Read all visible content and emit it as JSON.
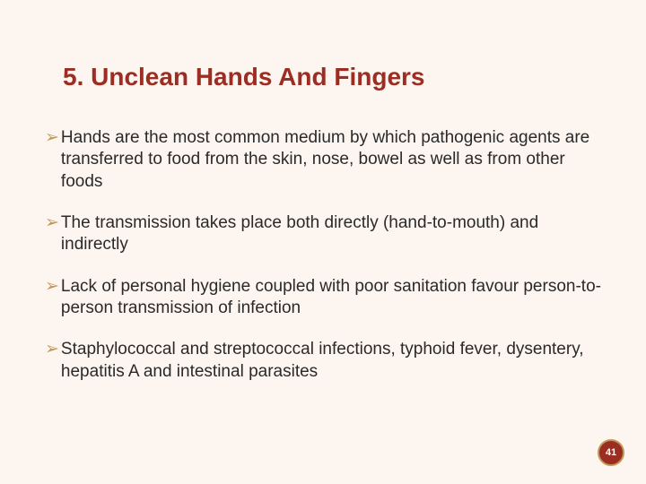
{
  "slide": {
    "background_color": "#fdf5ef",
    "title": {
      "text": "5. Unclean Hands And Fingers",
      "color": "#9b2d23",
      "fontsize": 28,
      "fontweight": "bold"
    },
    "bullet_marker": {
      "glyph": "➢",
      "color": "#c19a5b"
    },
    "bullets": [
      "Hands are the most common medium by which pathogenic agents are transferred to food from the skin, nose, bowel as well as from other foods",
      "The transmission takes place both directly (hand-to-mouth) and indirectly",
      "Lack of personal hygiene coupled with poor sanitation favour person-to-person transmission of infection",
      "Staphylococcal and streptococcal infections, typhoid fever, dysentery, hepatitis A and intestinal parasites"
    ],
    "body_text": {
      "color": "#2a2a2a",
      "fontsize": 19
    },
    "page_number": {
      "value": "41",
      "badge_bg": "#9b2d23",
      "badge_border": "#c19a5b",
      "text_color": "#ffffff"
    }
  }
}
